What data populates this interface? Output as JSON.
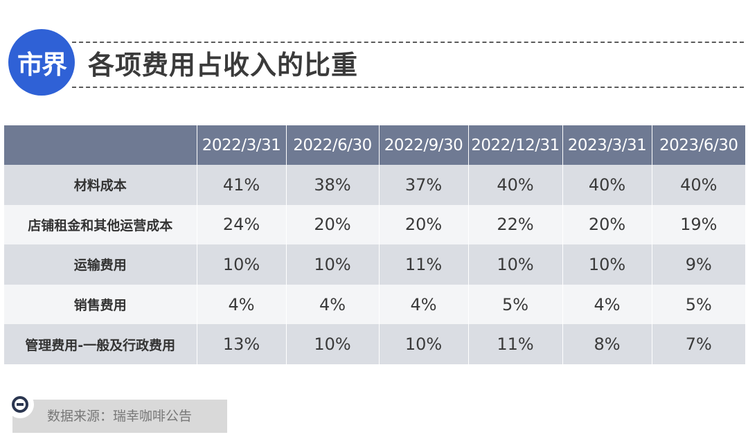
{
  "header": {
    "logo_text": "市界",
    "title": "各项费用占收入的比重",
    "logo_color": "#2f61d6"
  },
  "chart_data": {
    "type": "table",
    "title": "各项费用占收入的比重",
    "columns": [
      "2022/3/31",
      "2022/6/30",
      "2022/9/30",
      "2022/12/31",
      "2023/3/31",
      "2023/6/30"
    ],
    "rows": [
      {
        "label": "材料成本",
        "values": [
          "41%",
          "38%",
          "37%",
          "40%",
          "40%",
          "40%"
        ]
      },
      {
        "label": "店铺租金和其他运营成本",
        "values": [
          "24%",
          "20%",
          "20%",
          "22%",
          "20%",
          "19%"
        ]
      },
      {
        "label": "运输费用",
        "values": [
          "10%",
          "10%",
          "11%",
          "10%",
          "10%",
          "9%"
        ]
      },
      {
        "label": "销售费用",
        "values": [
          "4%",
          "4%",
          "4%",
          "5%",
          "4%",
          "5%"
        ]
      },
      {
        "label": "管理费用-一般及行政费用",
        "values": [
          "13%",
          "10%",
          "10%",
          "11%",
          "8%",
          "7%"
        ]
      }
    ],
    "header_color": "#6f7a93"
  },
  "source": {
    "text": "数据来源：瑞幸咖啡公告",
    "icon": "minus-circle-icon"
  }
}
